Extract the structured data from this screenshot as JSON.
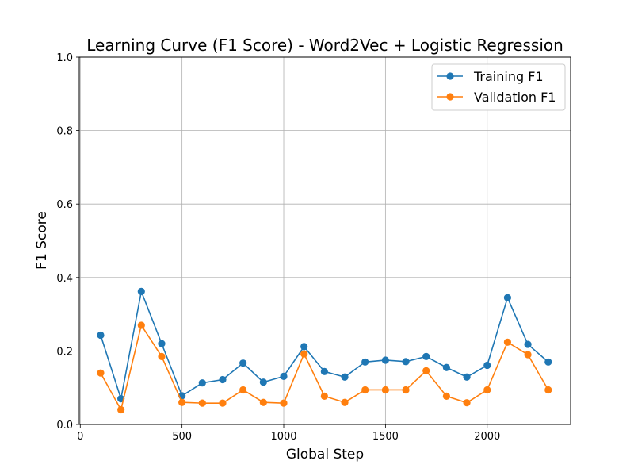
{
  "chart_data": {
    "type": "line",
    "title": "Learning Curve (F1 Score) - Word2Vec + Logistic Regression",
    "xlabel": "Global Step",
    "ylabel": "F1 Score",
    "xlim": [
      -5,
      2410
    ],
    "ylim": [
      0.0,
      1.0
    ],
    "xticks": [
      0,
      500,
      1000,
      1500,
      2000
    ],
    "yticks": [
      0.0,
      0.2,
      0.4,
      0.6,
      0.8,
      1.0
    ],
    "grid": true,
    "legend_position": "top-right",
    "x": [
      100,
      200,
      300,
      400,
      500,
      600,
      700,
      800,
      900,
      1000,
      1100,
      1200,
      1300,
      1400,
      1500,
      1600,
      1700,
      1800,
      1900,
      2000,
      2100,
      2200,
      2300
    ],
    "series": [
      {
        "name": "Training F1",
        "color": "#1f77b4",
        "values": [
          0.243,
          0.07,
          0.362,
          0.22,
          0.078,
          0.113,
          0.122,
          0.167,
          0.115,
          0.131,
          0.212,
          0.144,
          0.129,
          0.17,
          0.175,
          0.171,
          0.185,
          0.155,
          0.129,
          0.161,
          0.345,
          0.218,
          0.17
        ]
      },
      {
        "name": "Validation F1",
        "color": "#ff7f0e",
        "values": [
          0.14,
          0.04,
          0.27,
          0.185,
          0.06,
          0.058,
          0.058,
          0.094,
          0.06,
          0.058,
          0.192,
          0.077,
          0.06,
          0.094,
          0.094,
          0.094,
          0.146,
          0.077,
          0.059,
          0.094,
          0.224,
          0.19,
          0.094
        ]
      }
    ]
  }
}
